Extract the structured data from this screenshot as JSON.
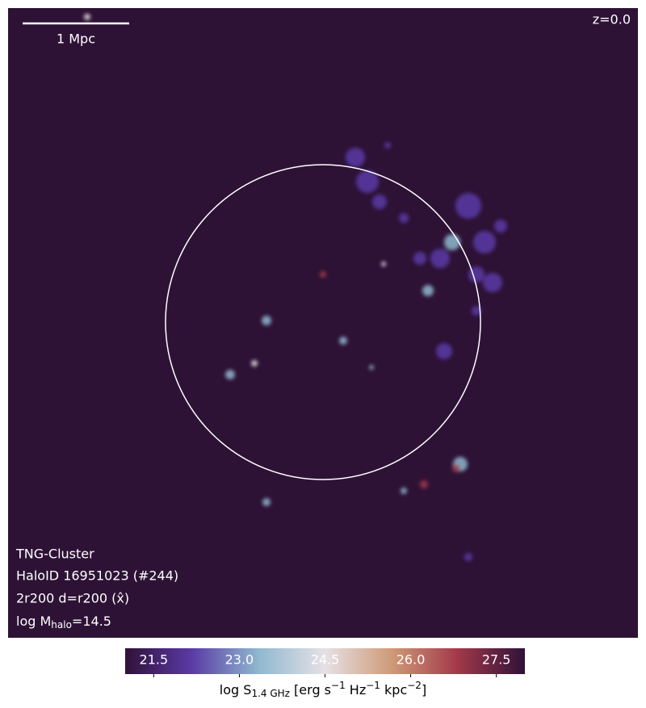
{
  "chart_data": {
    "type": "image",
    "scale_bar": "1 Mpc",
    "redshift": "z=0.0",
    "annotations": [
      "TNG-Cluster",
      "HaloID 16951023 (#244)",
      "2r200 d=r200 (x̂)"
    ],
    "mass_label": [
      "log M",
      "halo",
      "=14.5"
    ],
    "colorbar": {
      "label": [
        "log S",
        "1.4 GHz",
        " [erg s",
        "−1",
        " Hz",
        "−1",
        " kpc",
        "−2",
        "]"
      ],
      "clim": [
        21,
        28
      ],
      "ticks": [
        21.5,
        {
          "value": 23,
          "label": "23.0"
        },
        24.5,
        {
          "value": 26,
          "label": "26.0"
        },
        27.5
      ],
      "colors": [
        "#2f1238",
        "#5b3aa6",
        "#8fb8cf",
        "#e6e1e6",
        "#cf9a78",
        "#a2384a",
        "#2f1238"
      ]
    },
    "background": "#2e1236"
  }
}
